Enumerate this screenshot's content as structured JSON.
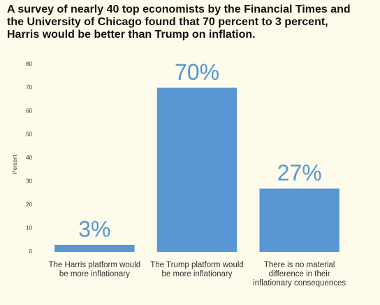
{
  "chart_data": {
    "type": "bar",
    "title": "A survey of nearly 40 top economists by the Financial Times and the University of Chicago found that 70 percent to 3 percent, Harris would be better than Trump on inflation.",
    "y_label": "Percent",
    "categories": [
      "The Harris platform would\nbe more inflationary",
      "The Trump platform would\nbe more inflationary",
      "There is no material\ndifference in their\ninflationary consequences"
    ],
    "values": [
      3,
      70,
      27
    ],
    "value_labels": [
      "3%",
      "70%",
      "27%"
    ],
    "color": "#5896d4",
    "ylim": [
      0,
      80
    ],
    "yticks": [
      0,
      10,
      20,
      30,
      40,
      50,
      60,
      70,
      80
    ],
    "grid": false
  }
}
